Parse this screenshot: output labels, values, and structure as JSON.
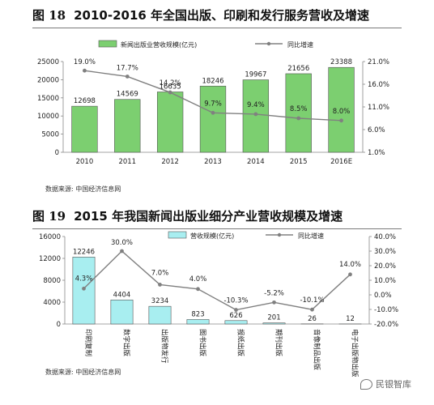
{
  "chart_data": [
    {
      "type": "bar",
      "title_number": "图 18",
      "title": "2010-2016 年全国出版、印刷和发行服务营收及增速",
      "categories": [
        "2010",
        "2011",
        "2012",
        "2013",
        "2014",
        "2015",
        "2016E"
      ],
      "series": [
        {
          "name": "新闻出版业营收规模(亿元)",
          "values": [
            12698,
            14569,
            16635,
            18246,
            19967,
            21656,
            23388
          ],
          "kind": "bar",
          "color": "#7ccf70"
        },
        {
          "name": "同比增速",
          "values": [
            19.0,
            17.7,
            14.2,
            9.7,
            9.4,
            8.5,
            8.0
          ],
          "kind": "line",
          "color": "#808080"
        }
      ],
      "value_labels": [
        "12698",
        "14569",
        "16635",
        "18246",
        "19967",
        "21656",
        "23388"
      ],
      "rate_labels": [
        "19.0%",
        "17.7%",
        "14.2%",
        "9.7%",
        "9.4%",
        "8.5%",
        "8.0%"
      ],
      "ylim": [
        0,
        25000
      ],
      "yticks": [
        "0",
        "5000",
        "10000",
        "15000",
        "20000",
        "25000"
      ],
      "y2lim": [
        1.0,
        21.0
      ],
      "y2ticks": [
        "1.0%",
        "6.0%",
        "11.0%",
        "16.0%",
        "21.0%"
      ],
      "legend_position": "top",
      "grid": false,
      "source": "数据来源: 中国经济信息网"
    },
    {
      "type": "bar",
      "title_number": "图 19",
      "title": "2015 年我国新闻出版业细分产业营收规模及增速",
      "categories": [
        "印刷复制",
        "数字出版",
        "出版物发行",
        "图书出版",
        "报纸出版",
        "期刊出版",
        "音像制品出版",
        "电子出版物出版"
      ],
      "series": [
        {
          "name": "营收规模(亿元)",
          "values": [
            12246,
            4404,
            3234,
            823,
            626,
            201,
            26,
            12
          ],
          "kind": "bar",
          "color": "#a8eef0"
        },
        {
          "name": "同比增速",
          "values": [
            4.3,
            30.0,
            7.0,
            4.0,
            -10.3,
            -5.2,
            -10.1,
            14.0
          ],
          "kind": "line",
          "color": "#808080"
        }
      ],
      "value_labels": [
        "12246",
        "4404",
        "3234",
        "823",
        "626",
        "201",
        "26",
        "12"
      ],
      "rate_labels": [
        "4.3%",
        "30.0%",
        "7.0%",
        "4.0%",
        "-10.3%",
        "-5.2%",
        "-10.1%",
        "14.0%"
      ],
      "ylim": [
        0,
        16000
      ],
      "yticks": [
        "0",
        "4000",
        "8000",
        "12000",
        "16000"
      ],
      "y2lim": [
        -20.0,
        40.0
      ],
      "y2ticks": [
        "-20.0%",
        "-10.0%",
        "0.0%",
        "10.0%",
        "20.0%",
        "30.0%",
        "40.0%"
      ],
      "legend_position": "top",
      "grid": false,
      "source": "数据来源: 中国经济信息网"
    }
  ],
  "watermark": "民银智库"
}
